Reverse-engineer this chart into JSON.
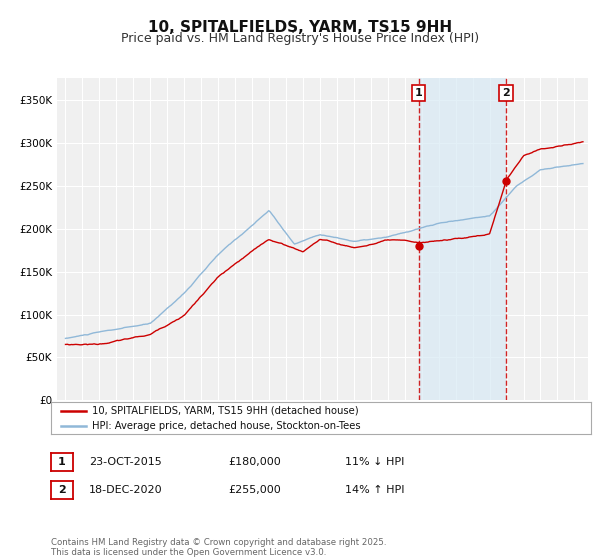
{
  "title": "10, SPITALFIELDS, YARM, TS15 9HH",
  "subtitle": "Price paid vs. HM Land Registry's House Price Index (HPI)",
  "title_fontsize": 11,
  "subtitle_fontsize": 9,
  "ylim": [
    0,
    375000
  ],
  "yticks": [
    0,
    50000,
    100000,
    150000,
    200000,
    250000,
    300000,
    350000
  ],
  "ytick_labels": [
    "£0",
    "£50K",
    "£100K",
    "£150K",
    "£200K",
    "£250K",
    "£300K",
    "£350K"
  ],
  "background_color": "#ffffff",
  "plot_bg_color": "#f0f0f0",
  "grid_color": "#ffffff",
  "hpi_color": "#90b8d8",
  "price_color": "#cc0000",
  "marker1_x": 2015.82,
  "marker1_y": 180000,
  "marker2_x": 2020.97,
  "marker2_y": 255000,
  "vline1_x": 2015.82,
  "vline2_x": 2020.97,
  "shade_color": "#d8eaf5",
  "legend_label1": "10, SPITALFIELDS, YARM, TS15 9HH (detached house)",
  "legend_label2": "HPI: Average price, detached house, Stockton-on-Tees",
  "table_row1": [
    "1",
    "23-OCT-2015",
    "£180,000",
    "11% ↓ HPI"
  ],
  "table_row2": [
    "2",
    "18-DEC-2020",
    "£255,000",
    "14% ↑ HPI"
  ],
  "footer": "Contains HM Land Registry data © Crown copyright and database right 2025.\nThis data is licensed under the Open Government Licence v3.0.",
  "xlim_start": 1994.5,
  "xlim_end": 2025.8
}
